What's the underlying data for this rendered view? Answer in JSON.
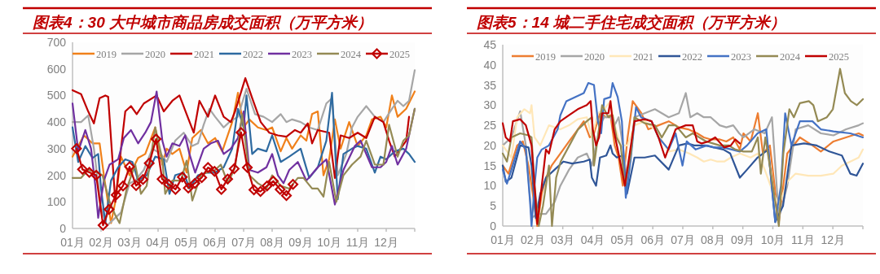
{
  "chart_data": [
    {
      "type": "line",
      "title": "图表4：30 大中城市商品房成交面积（万平方米）",
      "xlim": [
        1,
        13
      ],
      "xticks": [
        {
          "value": 1,
          "label": "01月"
        },
        {
          "value": 2,
          "label": "02月"
        },
        {
          "value": 3,
          "label": "03月"
        },
        {
          "value": 4,
          "label": "04月"
        },
        {
          "value": 5,
          "label": "05月"
        },
        {
          "value": 6,
          "label": "06月"
        },
        {
          "value": 7,
          "label": "07月"
        },
        {
          "value": 8,
          "label": "08月"
        },
        {
          "value": 9,
          "label": "09月"
        },
        {
          "value": 10,
          "label": "10月"
        },
        {
          "value": 11,
          "label": "11月"
        },
        {
          "value": 12,
          "label": "12月"
        }
      ],
      "ylim": [
        0,
        700
      ],
      "yticks": [
        0,
        100,
        200,
        300,
        400,
        500,
        600,
        700
      ],
      "legend": "top",
      "series": [
        {
          "name": "2019",
          "color": "#f0801a",
          "x": [
            1,
            1.4,
            1.7,
            1.95,
            2.1,
            2.35,
            2.5,
            2.7,
            3.0,
            3.3,
            3.55,
            3.9,
            4.15,
            4.3,
            4.5,
            4.75,
            5.0,
            5.2,
            5.5,
            5.75,
            6.0,
            6.25,
            6.6,
            6.8,
            7.0,
            7.2,
            7.5,
            7.8,
            8.0,
            8.3,
            8.5,
            8.7,
            9.0,
            9.2,
            9.4,
            9.6,
            9.8,
            10.0,
            10.2,
            10.4,
            10.7,
            11.0,
            11.3,
            11.5,
            11.8,
            12.0,
            12.2,
            12.4,
            12.7,
            13.0
          ],
          "values": [
            270,
            350,
            320,
            320,
            200,
            20,
            100,
            270,
            200,
            265,
            280,
            380,
            240,
            300,
            280,
            300,
            210,
            340,
            370,
            320,
            340,
            290,
            400,
            510,
            380,
            410,
            380,
            370,
            380,
            290,
            340,
            300,
            350,
            330,
            430,
            440,
            200,
            260,
            410,
            300,
            400,
            310,
            350,
            410,
            420,
            380,
            500,
            420,
            450,
            515
          ]
        },
        {
          "name": "2020",
          "color": "#a6a6a6",
          "x": [
            1,
            1.3,
            1.55,
            1.75,
            2.0,
            2.2,
            2.5,
            2.7,
            3.0,
            3.2,
            3.5,
            3.8,
            4.1,
            4.3,
            4.6,
            4.9,
            5.2,
            5.4,
            5.6,
            5.8,
            6.0,
            6.3,
            6.5,
            6.8,
            7.1,
            7.4,
            7.7,
            8.0,
            8.3,
            8.5,
            8.7,
            9.0,
            9.3,
            9.6,
            9.9,
            10.1,
            10.3,
            10.6,
            10.8,
            11.0,
            11.3,
            11.6,
            11.9,
            12.2,
            12.4,
            12.6,
            12.8,
            13.0
          ],
          "values": [
            400,
            400,
            425,
            300,
            80,
            10,
            40,
            60,
            170,
            180,
            220,
            300,
            280,
            250,
            330,
            360,
            310,
            320,
            390,
            450,
            420,
            380,
            400,
            420,
            525,
            430,
            420,
            400,
            430,
            400,
            410,
            400,
            380,
            370,
            470,
            490,
            200,
            280,
            380,
            420,
            460,
            420,
            400,
            450,
            480,
            460,
            480,
            595
          ]
        },
        {
          "name": "2021",
          "color": "#c00000",
          "x": [
            1,
            1.3,
            1.55,
            1.75,
            1.95,
            2.15,
            2.25,
            2.5,
            2.7,
            2.85,
            3.05,
            3.25,
            3.5,
            3.95,
            4.2,
            4.5,
            4.75,
            5.0,
            5.25,
            5.45,
            5.75,
            6.0,
            6.3,
            6.55,
            6.7,
            7.06,
            7.3,
            7.6,
            7.9,
            8.2,
            8.5,
            8.8,
            9.0,
            9.25,
            9.4,
            9.6,
            10.0,
            10.2,
            10.4,
            10.7,
            11.0,
            11.3,
            11.6,
            11.9,
            12.1,
            12.3,
            12.5,
            12.7,
            12.8
          ],
          "values": [
            520,
            505,
            440,
            395,
            490,
            500,
            495,
            100,
            300,
            440,
            460,
            430,
            470,
            500,
            440,
            480,
            500,
            430,
            360,
            480,
            420,
            500,
            420,
            400,
            440,
            565,
            490,
            400,
            360,
            350,
            345,
            370,
            360,
            395,
            320,
            370,
            360,
            190,
            350,
            340,
            360,
            340,
            420,
            400,
            330,
            270,
            300,
            330,
            420
          ]
        },
        {
          "name": "2022",
          "color": "#2e6aa0",
          "x": [
            1,
            1.2,
            1.45,
            1.7,
            1.9,
            2.0,
            2.15,
            2.35,
            2.6,
            2.85,
            3.1,
            3.3,
            3.6,
            3.9,
            4.2,
            4.4,
            4.6,
            4.9,
            5.1,
            5.4,
            5.7,
            6.0,
            6.3,
            6.6,
            6.8,
            7.0,
            7.1,
            7.3,
            7.5,
            7.8,
            8.0,
            8.3,
            8.6,
            9.0,
            9.3,
            9.6,
            9.9,
            10.1,
            10.3,
            10.5,
            10.8,
            11.0,
            11.3,
            11.6,
            11.8,
            12.0,
            12.3,
            12.6,
            12.8,
            13.0
          ],
          "values": [
            380,
            250,
            310,
            265,
            280,
            150,
            20,
            180,
            230,
            260,
            250,
            180,
            200,
            270,
            260,
            130,
            200,
            210,
            150,
            200,
            210,
            210,
            230,
            300,
            450,
            380,
            500,
            280,
            300,
            290,
            350,
            250,
            270,
            300,
            190,
            230,
            330,
            510,
            110,
            280,
            300,
            310,
            300,
            210,
            270,
            260,
            290,
            300,
            280,
            250
          ]
        },
        {
          "name": "2023",
          "color": "#7030a0",
          "x": [
            1,
            1.2,
            1.45,
            1.65,
            1.8,
            1.9,
            2.1,
            2.3,
            2.6,
            2.8,
            3.05,
            3.3,
            3.55,
            3.75,
            3.95,
            4.15,
            4.3,
            4.5,
            4.75,
            4.95,
            5.1,
            5.3,
            5.6,
            5.85,
            6.1,
            6.3,
            6.55,
            6.8,
            7.0,
            7.2,
            7.5,
            7.8,
            8.0,
            8.2,
            8.4,
            8.6,
            8.9,
            9.2,
            9.6,
            9.9,
            10.2,
            10.5,
            10.9,
            11.1,
            11.5,
            11.8,
            12.0,
            12.2,
            12.4,
            12.7,
            13.0
          ],
          "values": [
            470,
            290,
            370,
            300,
            160,
            40,
            180,
            240,
            260,
            340,
            370,
            320,
            360,
            400,
            515,
            330,
            270,
            320,
            310,
            350,
            280,
            210,
            300,
            320,
            330,
            280,
            300,
            340,
            440,
            220,
            210,
            230,
            280,
            200,
            170,
            220,
            250,
            180,
            230,
            260,
            90,
            220,
            310,
            330,
            230,
            230,
            250,
            310,
            240,
            300,
            450
          ]
        },
        {
          "name": "2024",
          "color": "#948a54",
          "x": [
            1,
            1.3,
            1.55,
            1.9,
            2.05,
            2.3,
            2.5,
            2.65,
            2.9,
            3.2,
            3.4,
            3.6,
            3.9,
            4.15,
            4.25,
            4.5,
            4.8,
            5.0,
            5.2,
            5.5,
            5.7,
            6.0,
            6.2,
            6.45,
            6.7,
            6.95,
            7.2,
            7.5,
            7.8,
            8.0,
            8.3,
            8.6,
            8.9,
            9.1,
            9.4,
            9.6,
            9.8,
            10.0,
            10.25,
            10.5,
            10.8,
            11.1,
            11.3,
            11.6,
            11.9,
            12.1,
            12.4,
            12.6,
            12.8,
            13.0
          ],
          "values": [
            190,
            190,
            220,
            210,
            200,
            100,
            50,
            20,
            150,
            240,
            130,
            160,
            380,
            260,
            130,
            180,
            180,
            255,
            105,
            200,
            210,
            220,
            240,
            170,
            230,
            430,
            200,
            170,
            150,
            200,
            160,
            150,
            190,
            190,
            150,
            150,
            120,
            250,
            100,
            200,
            240,
            270,
            330,
            240,
            240,
            390,
            270,
            330,
            350,
            450
          ]
        },
        {
          "name": "2025",
          "color": "#c00000",
          "marker": "diamond",
          "x": [
            1.14,
            1.35,
            1.59,
            1.83,
            2.07,
            2.28,
            2.53,
            2.77,
            3.0,
            3.23,
            3.47,
            3.69,
            3.93,
            4.14,
            4.37,
            4.61,
            4.85,
            5.06,
            5.29,
            5.53,
            5.75,
            5.98,
            6.22,
            6.44,
            6.67,
            6.91,
            7.13,
            7.36,
            7.59,
            7.82,
            8.04,
            8.28,
            8.5,
            8.73
          ],
          "values": [
            300,
            222,
            211,
            200,
            12,
            72,
            126,
            160,
            232,
            161,
            184,
            245,
            336,
            186,
            166,
            147,
            193,
            152,
            170,
            191,
            229,
            215,
            147,
            186,
            225,
            361,
            229,
            145,
            139,
            160,
            178,
            147,
            124,
            166
          ]
        }
      ]
    },
    {
      "type": "line",
      "title": "图表5：14 城二手住宅成交面积（万平方米）",
      "xlim": [
        1,
        13
      ],
      "xticks": [
        {
          "value": 1,
          "label": "01月"
        },
        {
          "value": 2,
          "label": "02月"
        },
        {
          "value": 3,
          "label": "03月"
        },
        {
          "value": 4,
          "label": "04月"
        },
        {
          "value": 5,
          "label": "05月"
        },
        {
          "value": 6,
          "label": "06月"
        },
        {
          "value": 7,
          "label": "07月"
        },
        {
          "value": 8,
          "label": "08月"
        },
        {
          "value": 9,
          "label": "09月"
        },
        {
          "value": 10,
          "label": "10月"
        },
        {
          "value": 11,
          "label": "11月"
        },
        {
          "value": 12,
          "label": "12月"
        }
      ],
      "ylim": [
        0,
        45
      ],
      "yticks": [
        0,
        5,
        10,
        15,
        20,
        25,
        30,
        35,
        40,
        45
      ],
      "legend": "top",
      "series": [
        {
          "name": "2019",
          "color": "#ed7d31",
          "x": [
            1,
            1.19,
            1.48,
            1.67,
            1.86,
            2.06,
            2.15,
            2.3,
            2.44,
            2.63,
            2.92,
            3.21,
            3.41,
            3.7,
            3.9,
            4.04,
            4.24,
            4.45,
            4.59,
            4.73,
            4.86,
            5.0,
            5.16,
            5.33,
            5.62,
            5.85,
            6.19,
            6.53,
            6.87,
            7.18,
            7.48,
            7.7,
            7.93,
            8.23,
            8.45,
            8.68,
            8.9,
            9.02,
            9.26,
            9.5,
            9.67,
            9.9,
            10.2,
            10.48,
            10.9,
            11.32,
            11.6,
            12.02,
            12.44,
            12.86,
            13.0
          ],
          "values": [
            15,
            13,
            20,
            21,
            15,
            5,
            0,
            8,
            12,
            15,
            18,
            21,
            23,
            26,
            22,
            23,
            28,
            27,
            27.5,
            20,
            17,
            10,
            22,
            31,
            28,
            24,
            25,
            26,
            24.5,
            24,
            23,
            22,
            21.5,
            21.5,
            21,
            22,
            19,
            23,
            21,
            28,
            18,
            20,
            1,
            18,
            22,
            20,
            18.5,
            21,
            22,
            23,
            22.5
          ]
        },
        {
          "name": "2020",
          "color": "#a6a6a6",
          "x": [
            1,
            1.29,
            1.58,
            1.77,
            1.96,
            2.15,
            2.44,
            2.73,
            2.92,
            3.21,
            3.5,
            3.8,
            3.97,
            4.11,
            4.24,
            4.38,
            4.59,
            4.73,
            4.86,
            5.0,
            5.16,
            5.39,
            5.73,
            6.07,
            6.53,
            6.87,
            7.1,
            7.25,
            7.48,
            7.7,
            7.93,
            8.23,
            8.45,
            8.68,
            8.88,
            9.02,
            9.38,
            9.73,
            9.97,
            10.2,
            10.48,
            10.76,
            11.18,
            11.6,
            12.02,
            12.44,
            12.86,
            13.0
          ],
          "values": [
            20,
            22,
            28.5,
            20,
            2,
            3,
            3,
            6,
            10,
            14,
            17,
            18,
            15,
            20,
            25,
            27,
            27,
            25,
            27,
            20,
            10,
            27,
            28,
            29,
            27,
            28,
            33,
            27,
            28,
            27,
            27,
            25,
            24.5,
            25,
            23,
            22,
            24,
            23,
            27,
            2,
            10,
            24,
            25,
            23,
            22.5,
            24,
            25,
            25.5
          ]
        },
        {
          "name": "2021",
          "color": "#ffe7b8",
          "x": [
            1,
            1.29,
            1.48,
            1.72,
            1.91,
            1.96,
            2.06,
            2.25,
            2.54,
            2.92,
            3.21,
            3.5,
            3.8,
            3.97,
            4.17,
            4.38,
            4.59,
            4.73,
            4.93,
            5.16,
            5.39,
            5.73,
            6.07,
            6.53,
            6.87,
            7.21,
            7.48,
            7.7,
            7.93,
            8.15,
            8.38,
            8.6,
            8.9,
            9.26,
            9.5,
            9.73,
            9.97,
            10.2,
            10.48,
            10.76,
            11.18,
            11.6,
            12.02,
            12.3,
            12.72,
            12.86,
            13.0
          ],
          "values": [
            20,
            17,
            27,
            29,
            28,
            30,
            22,
            20,
            25,
            24,
            25,
            26.5,
            27,
            22,
            28,
            29,
            31,
            25,
            20,
            20,
            25,
            26,
            24,
            18.5,
            19,
            18,
            17,
            16,
            16.5,
            16,
            16,
            17,
            18,
            17,
            18,
            14,
            9,
            5,
            11,
            13,
            12.5,
            12.5,
            13,
            15,
            16.5,
            17,
            19
          ]
        },
        {
          "name": "2022",
          "color": "#2f5597",
          "x": [
            1,
            1.1,
            1.29,
            1.58,
            1.86,
            1.96,
            2.1,
            2.25,
            2.44,
            2.73,
            3.02,
            3.31,
            3.7,
            3.9,
            3.97,
            4.11,
            4.24,
            4.45,
            4.59,
            4.66,
            4.8,
            5.0,
            5.14,
            5.39,
            5.73,
            6.07,
            6.53,
            6.87,
            7.15,
            7.38,
            7.75,
            8.05,
            8.35,
            8.58,
            8.9,
            9.14,
            9.49,
            9.85,
            10.08,
            10.34,
            10.62,
            11.04,
            11.46,
            11.88,
            12.3,
            12.58,
            12.79,
            13.0
          ],
          "values": [
            15,
            11,
            12,
            20,
            19.5,
            15,
            2,
            8,
            12,
            14,
            16,
            15.5,
            16,
            16.5,
            12,
            10,
            17,
            17.5,
            20,
            18,
            17,
            17.5,
            8,
            17,
            17,
            17.5,
            14,
            20,
            20.5,
            20,
            20,
            19.5,
            19,
            18,
            12,
            14,
            17,
            19,
            1,
            5,
            20,
            20.5,
            20,
            18.5,
            17.5,
            13,
            12.5,
            15.5
          ]
        },
        {
          "name": "2023",
          "color": "#4472c4",
          "x": [
            1,
            1.14,
            1.29,
            1.58,
            1.77,
            1.91,
            1.96,
            2.06,
            2.15,
            2.3,
            2.54,
            2.83,
            2.92,
            3.12,
            3.41,
            3.7,
            3.85,
            4.04,
            4.17,
            4.28,
            4.38,
            4.59,
            4.66,
            4.83,
            4.97,
            5.1,
            5.27,
            5.44,
            5.61,
            5.96,
            6.19,
            6.53,
            6.76,
            6.99,
            7.13,
            7.28,
            7.43,
            7.8,
            8.03,
            8.33,
            8.63,
            8.9,
            9.14,
            9.49,
            9.78,
            10.08,
            10.27,
            10.41,
            10.62,
            10.9,
            11.32,
            11.6,
            12.02,
            12.58,
            13.0
          ],
          "values": [
            14,
            10.5,
            14,
            21,
            19,
            6,
            0,
            10,
            17,
            19,
            20,
            24,
            27.5,
            31,
            32,
            33,
            35.5,
            35,
            26,
            23,
            31.5,
            32,
            35.5,
            32,
            26,
            7,
            17,
            29.5,
            27,
            26,
            22,
            19,
            23,
            15,
            21,
            20,
            19,
            20,
            19.5,
            19.5,
            19,
            18.5,
            20,
            23,
            24,
            1,
            10,
            28,
            20,
            26,
            26,
            24,
            23.5,
            23,
            22
          ]
        },
        {
          "name": "2024",
          "color": "#948a54",
          "x": [
            1,
            1.14,
            1.29,
            1.58,
            1.86,
            1.96,
            2.06,
            2.2,
            2.34,
            2.54,
            2.64,
            2.78,
            2.93,
            3.22,
            3.51,
            3.8,
            3.97,
            4.04,
            4.17,
            4.31,
            4.52,
            4.66,
            4.79,
            4.93,
            5.07,
            5.27,
            5.39,
            5.73,
            6.07,
            6.3,
            6.53,
            6.76,
            7.1,
            7.33,
            7.55,
            7.78,
            8.0,
            8.23,
            8.53,
            8.75,
            9.02,
            9.3,
            9.5,
            9.6,
            9.75,
            9.95,
            10.2,
            10.35,
            10.55,
            10.7,
            10.9,
            11.2,
            11.35,
            11.5,
            11.8,
            12.0,
            12.24,
            12.4,
            12.6,
            12.8,
            13.0
          ],
          "values": [
            18,
            16,
            22,
            23,
            22.5,
            22,
            10,
            0,
            5,
            15,
            0,
            12,
            16,
            20,
            24,
            26,
            27,
            15,
            22,
            30,
            27,
            27.5,
            22,
            20,
            10,
            18,
            27,
            25.5,
            25,
            22,
            25,
            25,
            22,
            23,
            22,
            21,
            20.5,
            20,
            20,
            19,
            18.5,
            18.5,
            22,
            13,
            22,
            12.5,
            0,
            18,
            29,
            27,
            30.5,
            31,
            30,
            26,
            27,
            29,
            39,
            33,
            31,
            30,
            31.5
          ]
        },
        {
          "name": "2025",
          "color": "#c00000",
          "x": [
            1,
            1.1,
            1.24,
            1.34,
            1.58,
            1.77,
            1.96,
            2.06,
            2.15,
            2.3,
            2.44,
            2.54,
            2.73,
            2.92,
            3.21,
            3.5,
            3.8,
            3.93,
            4.0,
            4.11,
            4.21,
            4.31,
            4.52,
            4.59,
            4.69,
            4.86,
            5.07,
            5.27,
            5.39,
            5.73,
            5.96,
            6.19,
            6.41,
            6.76,
            7.1,
            7.33,
            7.48,
            7.63,
            7.85,
            8.08,
            8.38,
            8.6,
            8.75,
            8.9
          ],
          "values": [
            25.5,
            22,
            21,
            26,
            26.5,
            25,
            20,
            10,
            0.5,
            10,
            19,
            18,
            24,
            26,
            27.5,
            29,
            30,
            31,
            24,
            20,
            22,
            28,
            28,
            31,
            24,
            18,
            10,
            20,
            26,
            26.5,
            26,
            22,
            17,
            24,
            25,
            25,
            21,
            20.5,
            21,
            22,
            19.5,
            20,
            21.5,
            20.5
          ]
        }
      ]
    }
  ]
}
